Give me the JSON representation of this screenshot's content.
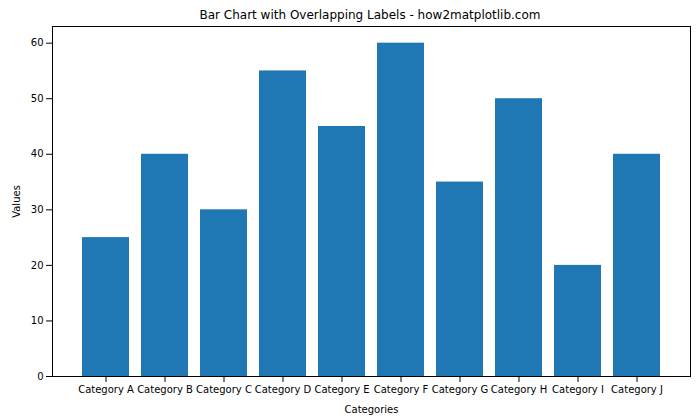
{
  "chart_data": {
    "type": "bar",
    "title": "Bar Chart with Overlapping Labels - how2matplotlib.com",
    "x_label": "Categories",
    "y_label": "Values",
    "categories": [
      "Category A",
      "Category B",
      "Category C",
      "Category D",
      "Category E",
      "Category F",
      "Category G",
      "Category H",
      "Category I",
      "Category J"
    ],
    "values": [
      25,
      40,
      30,
      55,
      45,
      60,
      35,
      50,
      20,
      40
    ],
    "color": "#1f77b4",
    "ylim": [
      0,
      63
    ],
    "yticks": [
      0,
      10,
      20,
      30,
      40,
      50,
      60
    ],
    "grid": false
  }
}
